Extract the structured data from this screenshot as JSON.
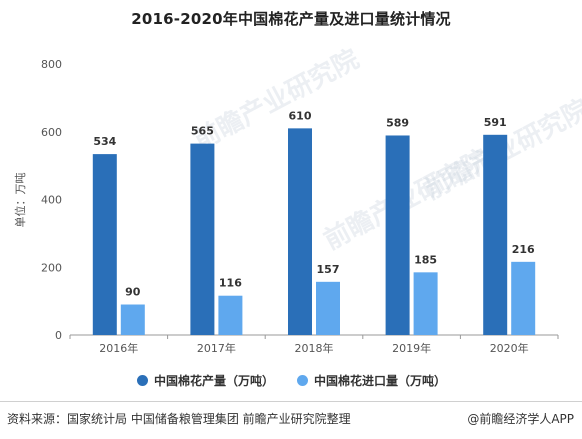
{
  "chart_data": {
    "type": "bar",
    "title": "2016-2020年中国棉花产量及进口量统计情况",
    "ylabel": "单位：万吨",
    "categories": [
      "2016年",
      "2017年",
      "2018年",
      "2019年",
      "2020年"
    ],
    "ylim": [
      0,
      800
    ],
    "yticks": [
      0,
      200,
      400,
      600,
      800
    ],
    "series": [
      {
        "name": "中国棉花产量（万吨）",
        "color": "#2a6fb8",
        "values": [
          534,
          565,
          610,
          589,
          591
        ]
      },
      {
        "name": "中国棉花进口量（万吨）",
        "color": "#5fa8ee",
        "values": [
          90,
          116,
          157,
          185,
          216
        ]
      }
    ],
    "legend_position": "bottom",
    "grid": false
  },
  "footer": {
    "source": "资料来源：国家统计局 中国储备粮管理集团 前瞻产业研究院整理",
    "credit": "@前瞻经济学人APP"
  },
  "watermark": "前瞻产业研究院"
}
